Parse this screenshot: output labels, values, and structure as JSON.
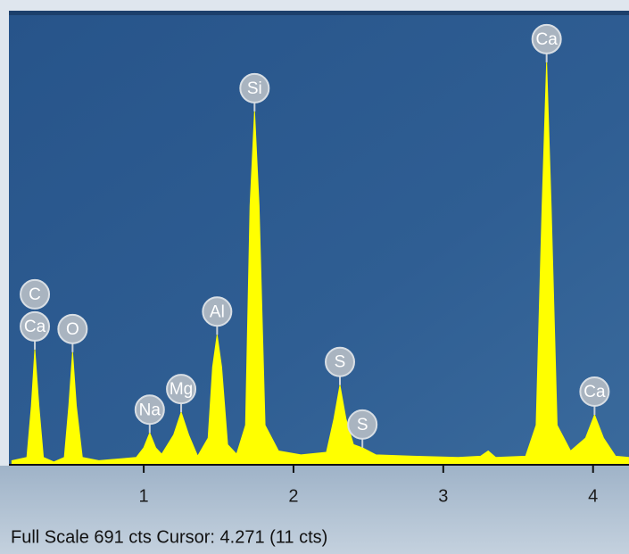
{
  "chart_data": {
    "type": "area",
    "series": [
      {
        "color": "#ffff00",
        "x": [
          0.12,
          0.22,
          0.25,
          0.273,
          0.3,
          0.33,
          0.4,
          0.47,
          0.5,
          0.525,
          0.55,
          0.59,
          0.7,
          0.85,
          0.95,
          1.0,
          1.04,
          1.08,
          1.12,
          1.2,
          1.25,
          1.3,
          1.36,
          1.43,
          1.46,
          1.49,
          1.52,
          1.56,
          1.62,
          1.68,
          1.71,
          1.74,
          1.77,
          1.81,
          1.9,
          2.05,
          2.22,
          2.27,
          2.31,
          2.35,
          2.4,
          2.46,
          2.55,
          2.8,
          3.1,
          3.25,
          3.3,
          3.35,
          3.55,
          3.62,
          3.66,
          3.69,
          3.72,
          3.76,
          3.85,
          3.95,
          4.01,
          4.07,
          4.15,
          4.24
        ],
        "values": [
          5,
          10,
          90,
          177,
          90,
          10,
          3,
          10,
          90,
          173,
          90,
          10,
          5,
          8,
          10,
          25,
          48,
          25,
          15,
          45,
          80,
          45,
          12,
          40,
          150,
          200,
          150,
          30,
          15,
          60,
          400,
          546,
          400,
          60,
          20,
          14,
          18,
          70,
          122,
          70,
          30,
          25,
          14,
          12,
          10,
          12,
          20,
          10,
          12,
          60,
          400,
          622,
          400,
          60,
          20,
          40,
          76,
          40,
          12,
          10
        ]
      }
    ],
    "annotations": [
      {
        "text": "Ca",
        "x": 0.273,
        "y": 177
      },
      {
        "text": "C",
        "x": 0.273,
        "y": 177
      },
      {
        "text": "O",
        "x": 0.525,
        "y": 173
      },
      {
        "text": "Na",
        "x": 1.04,
        "y": 48
      },
      {
        "text": "Mg",
        "x": 1.25,
        "y": 80
      },
      {
        "text": "Al",
        "x": 1.49,
        "y": 200
      },
      {
        "text": "Si",
        "x": 1.74,
        "y": 546
      },
      {
        "text": "S",
        "x": 2.31,
        "y": 122
      },
      {
        "text": "S",
        "x": 2.46,
        "y": 25
      },
      {
        "text": "Ca",
        "x": 3.69,
        "y": 622
      },
      {
        "text": "Ca",
        "x": 4.01,
        "y": 76
      }
    ],
    "xlim": [
      0.1,
      4.24
    ],
    "xticks": [
      1,
      2,
      3,
      4
    ],
    "ylim": [
      0,
      691
    ],
    "status": "Full Scale 691 cts Cursor: 4.271  (11 cts)"
  }
}
